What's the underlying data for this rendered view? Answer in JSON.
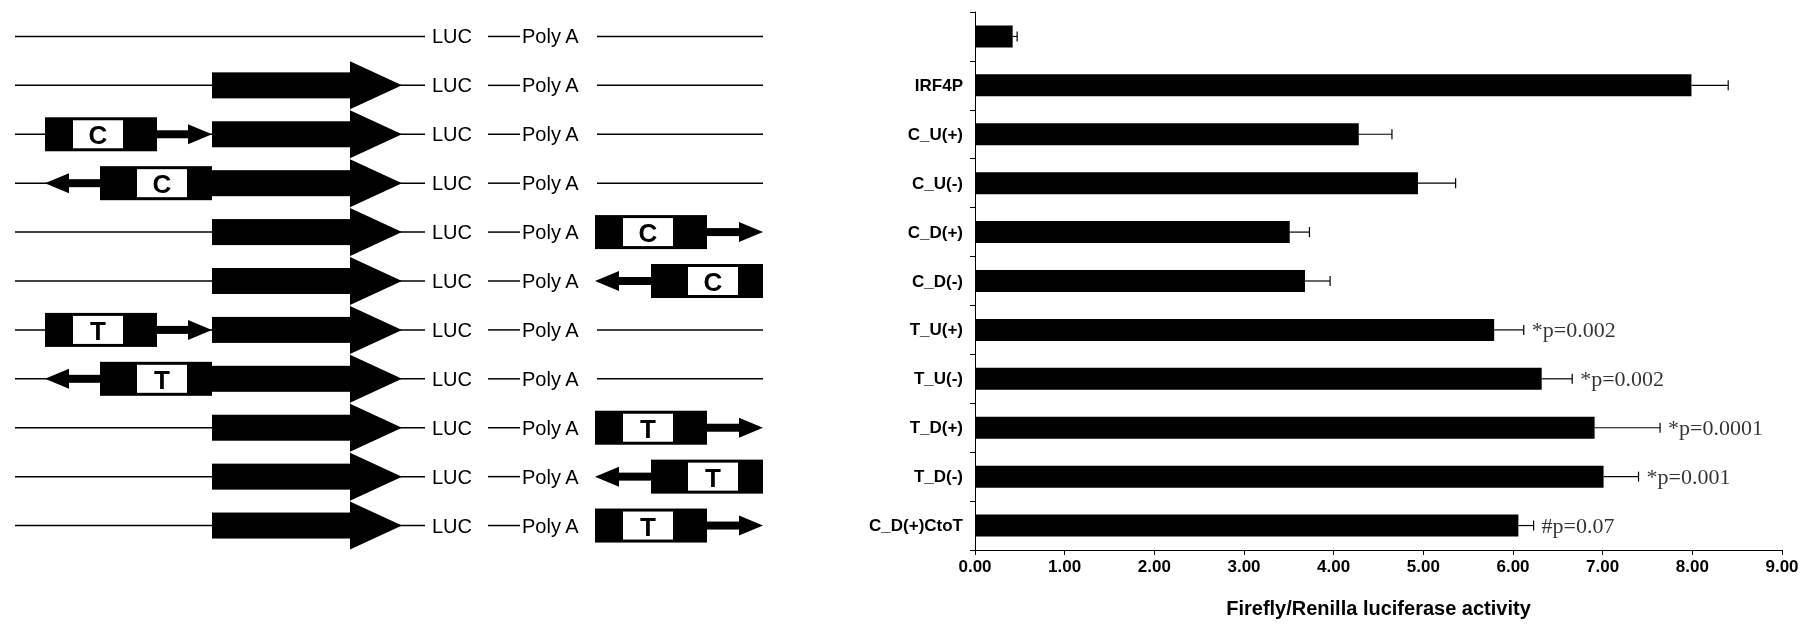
{
  "chart_data": [
    {
      "type": "other",
      "annotations": [
        "LUC",
        "Poly A",
        "C",
        "T"
      ]
    },
    {
      "type": "bar",
      "orientation": "horizontal",
      "categories": [
        null,
        "IRF4P",
        "C_U(+)",
        "C_U(-)",
        "C_D(+)",
        "C_D(-)",
        "T_U(+)",
        "T_U(-)",
        "T_D(+)",
        "T_D(-)",
        "C_D(+)CtoT"
      ],
      "values": [
        0.42,
        7.99,
        4.28,
        4.94,
        3.51,
        3.68,
        5.79,
        6.32,
        6.91,
        7.01,
        6.06
      ],
      "errors": [
        [
          0.42,
          0.47
        ],
        [
          7.99,
          8.4
        ],
        [
          4.28,
          4.65
        ],
        [
          4.94,
          5.36
        ],
        [
          3.51,
          3.73
        ],
        [
          3.68,
          3.96
        ],
        [
          5.79,
          6.12
        ],
        [
          6.32,
          6.66
        ],
        [
          6.91,
          7.64
        ],
        [
          7.01,
          7.4
        ],
        [
          6.06,
          6.23
        ]
      ],
      "color": "#000000",
      "xlabel": "Firefly/Renilla luciferase activity",
      "xlim": [
        0,
        9
      ],
      "xticks": [
        {
          "value": 0,
          "label": "0.00"
        },
        {
          "value": 1,
          "label": "1.00"
        },
        {
          "value": 2,
          "label": "2.00"
        },
        {
          "value": 3,
          "label": "3.00"
        },
        {
          "value": 4,
          "label": "4.00"
        },
        {
          "value": 5,
          "label": "5.00"
        },
        {
          "value": 6,
          "label": "6.00"
        },
        {
          "value": 7,
          "label": "7.00"
        },
        {
          "value": 8,
          "label": "8.00"
        },
        {
          "value": 9,
          "label": "9.00"
        }
      ],
      "grid": false,
      "annotations": [
        "*p=0.002",
        "*p=0.002",
        "*p=0.0001",
        "*p=0.001",
        "#p=0.07"
      ]
    }
  ]
}
